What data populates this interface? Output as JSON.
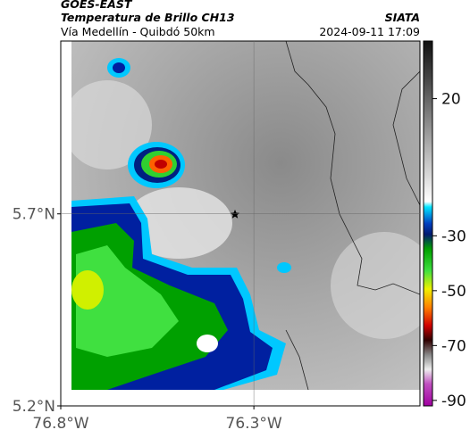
{
  "header": {
    "source": "GOES-EAST",
    "product": "Temperatura de Brillo CH13",
    "org": "SIATA",
    "route": "Vía Medellín - Quibdó 50km",
    "datetime": "2024-09-11 17:09"
  },
  "map": {
    "xlim": [
      -76.8,
      -75.87
    ],
    "ylim": [
      5.2,
      6.15
    ],
    "xticks": [
      {
        "value": -76.8,
        "label": "76.8°W"
      },
      {
        "value": -76.3,
        "label": "76.3°W"
      }
    ],
    "yticks": [
      {
        "value": 5.2,
        "label": "5.2°N"
      },
      {
        "value": 5.7,
        "label": "5.7°N"
      }
    ],
    "grid": true
  },
  "colorbar": {
    "lim": [
      -92,
      41
    ],
    "ticks": [
      20,
      -30,
      -50,
      -70,
      -90
    ]
  }
}
